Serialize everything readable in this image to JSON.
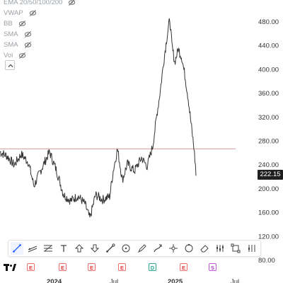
{
  "indicators": [
    {
      "label": "EMA 20/50/100/200"
    },
    {
      "label": "VWAP"
    },
    {
      "label": "BB"
    },
    {
      "label": "SMA"
    },
    {
      "label": "SMA"
    },
    {
      "label": "Vol"
    }
  ],
  "price_axis": [
    "480.00",
    "440.00",
    "400.00",
    "360.00",
    "320.00",
    "280.00",
    "240.00",
    "200.00",
    "160.00",
    "120.00",
    "80.00"
  ],
  "current_price": "222.15",
  "time_axis": [
    {
      "label": "2024",
      "bold": true
    },
    {
      "label": "Jul",
      "bold": false
    },
    {
      "label": "2025",
      "bold": true
    },
    {
      "label": "Jul",
      "bold": false
    }
  ],
  "events": [
    "E",
    "E",
    "E",
    "E",
    "D",
    "E",
    "S"
  ],
  "toolbar": [
    "trend-line-tool",
    "parallel-channel-tool",
    "fib-retracement-tool",
    "text-tool",
    "arrow-up-tool",
    "arrow-down-tool",
    "brush-tool",
    "measure-tool",
    "pen-tool",
    "highlighter-tool",
    "crosshair-tool",
    "circle-tool",
    "eraser-tool",
    "indicators-tool",
    "fullscreen-tool",
    "layout-tool"
  ],
  "horizontal_line_price": 267,
  "colors": {
    "candle": "#333333",
    "horizontal_line": "#d9a5a5",
    "accent": "#2962ff"
  }
}
